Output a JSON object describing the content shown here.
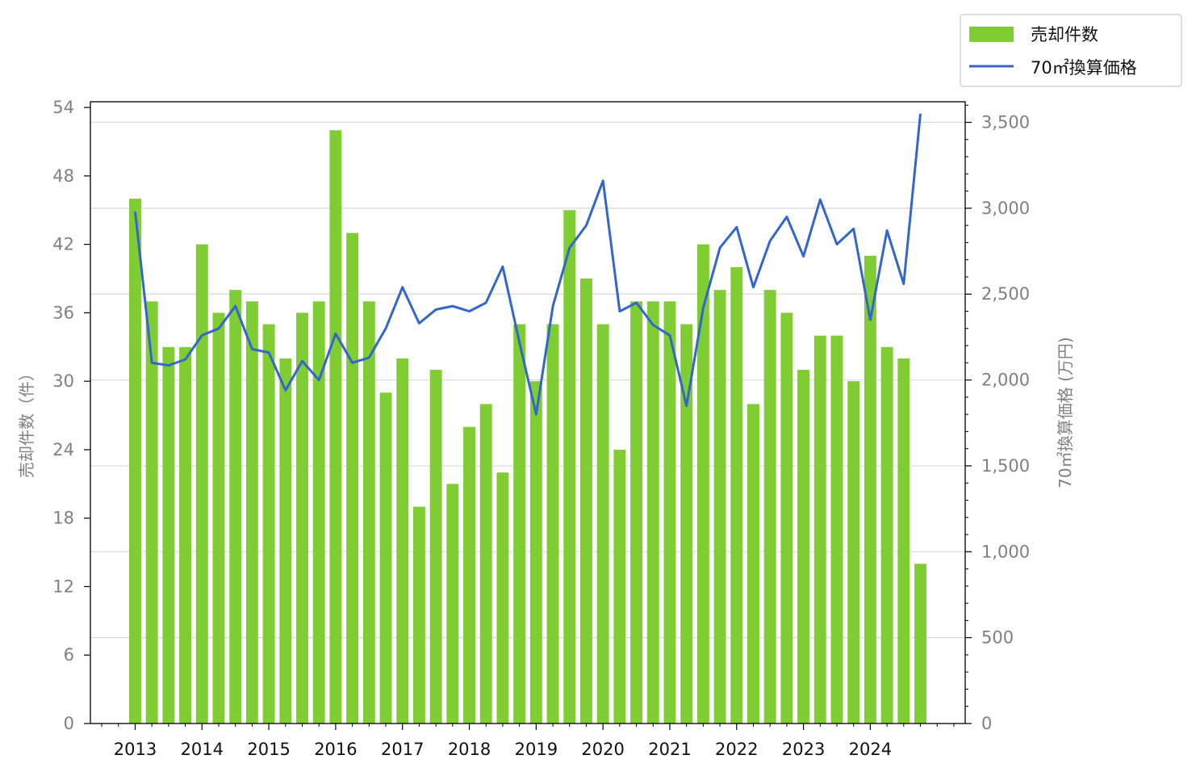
{
  "chart_data": {
    "type": "bar",
    "x_ticks": [
      "2013",
      "2014",
      "2015",
      "2016",
      "2017",
      "2018",
      "2019",
      "2020",
      "2021",
      "2022",
      "2023",
      "2024"
    ],
    "y_left_label": "売却件数（件）",
    "y_right_label": "70㎡換算価格 (万円)",
    "y_left_ticks": [
      "0",
      "6",
      "12",
      "18",
      "24",
      "30",
      "36",
      "42",
      "48",
      "54"
    ],
    "y_right_ticks": [
      "0",
      "500",
      "1,000",
      "1,500",
      "2,000",
      "2,500",
      "3,000",
      "3,500"
    ],
    "ylim_left": [
      0,
      54.5
    ],
    "ylim_right": [
      0,
      3620
    ],
    "x_range": [
      2012.33,
      2025.42
    ],
    "grid": "horizontal (right axis)",
    "legend_position": "top-right (outside plot)",
    "series": [
      {
        "name": "売却件数",
        "type": "bar",
        "axis": "left",
        "color": "#7fcc33",
        "x": [
          2013.0,
          2013.25,
          2013.5,
          2013.75,
          2014.0,
          2014.25,
          2014.5,
          2014.75,
          2015.0,
          2015.25,
          2015.5,
          2015.75,
          2016.0,
          2016.25,
          2016.5,
          2016.75,
          2017.0,
          2017.25,
          2017.5,
          2017.75,
          2018.0,
          2018.25,
          2018.5,
          2018.75,
          2019.0,
          2019.25,
          2019.5,
          2019.75,
          2020.0,
          2020.25,
          2020.5,
          2020.75,
          2021.0,
          2021.25,
          2021.5,
          2021.75,
          2022.0,
          2022.25,
          2022.5,
          2022.75,
          2023.0,
          2023.25,
          2023.5,
          2023.75,
          2024.0,
          2024.25,
          2024.5,
          2024.75
        ],
        "values": [
          46,
          37,
          33,
          33,
          42,
          36,
          38,
          37,
          35,
          32,
          36,
          37,
          52,
          43,
          37,
          29,
          32,
          19,
          31,
          21,
          26,
          28,
          22,
          35,
          30,
          35,
          45,
          39,
          35,
          24,
          37,
          37,
          37,
          35,
          42,
          38,
          40,
          28,
          38,
          36,
          31,
          34,
          34,
          30,
          41,
          33,
          32,
          14
        ]
      },
      {
        "name": "70㎡換算価格",
        "type": "line",
        "axis": "right",
        "color": "#3366cc",
        "x": [
          2013.0,
          2013.25,
          2013.5,
          2013.75,
          2014.0,
          2014.25,
          2014.5,
          2014.75,
          2015.0,
          2015.25,
          2015.5,
          2015.75,
          2016.0,
          2016.25,
          2016.5,
          2016.75,
          2017.0,
          2017.25,
          2017.5,
          2017.75,
          2018.0,
          2018.25,
          2018.5,
          2018.75,
          2019.0,
          2019.25,
          2019.5,
          2019.75,
          2020.0,
          2020.25,
          2020.5,
          2020.75,
          2021.0,
          2021.25,
          2021.5,
          2021.75,
          2022.0,
          2022.25,
          2022.5,
          2022.75,
          2023.0,
          2023.25,
          2023.5,
          2023.75,
          2024.0,
          2024.25,
          2024.5,
          2024.75
        ],
        "values": [
          2980,
          2100,
          2085,
          2120,
          2260,
          2300,
          2430,
          2180,
          2160,
          1940,
          2110,
          2000,
          2270,
          2100,
          2130,
          2300,
          2540,
          2330,
          2410,
          2430,
          2400,
          2450,
          2660,
          2220,
          1800,
          2430,
          2770,
          2900,
          3160,
          2400,
          2450,
          2320,
          2260,
          1850,
          2420,
          2770,
          2890,
          2540,
          2810,
          2950,
          2720,
          3050,
          2790,
          2880,
          2350,
          2870,
          2560,
          3550
        ]
      }
    ]
  }
}
